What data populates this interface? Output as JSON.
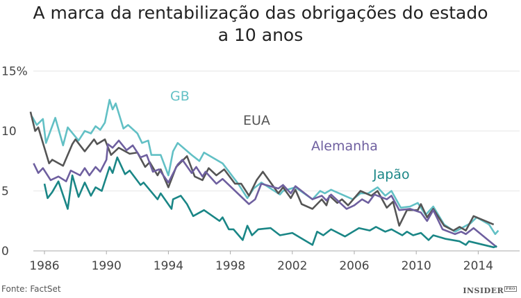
{
  "chart_data": {
    "type": "line",
    "title": "A marca da rentabilização das obrigações do estado a 10 anos",
    "title_lines": [
      "A marca da rentabilização das obrigações do estado",
      "a 10 anos"
    ],
    "xlabel": "",
    "ylabel": "",
    "x_ticks": [
      "1986",
      "1990",
      "1994",
      "1998",
      "2002",
      "2006",
      "2010",
      "2014"
    ],
    "y_ticks": [
      "0",
      "5",
      "10",
      "15%"
    ],
    "ylim": [
      0,
      15
    ],
    "xlim": [
      1985,
      2016
    ],
    "grid": true,
    "legend": "inline labels",
    "series": [
      {
        "name": "GB",
        "color": "#62c0c5",
        "points": [
          [
            1985.2,
            11.2
          ],
          [
            1985.5,
            10.5
          ],
          [
            1985.9,
            11.0
          ],
          [
            1986.1,
            9.0
          ],
          [
            1986.7,
            11.1
          ],
          [
            1987.2,
            8.8
          ],
          [
            1987.5,
            10.3
          ],
          [
            1988.2,
            9.2
          ],
          [
            1988.6,
            10.0
          ],
          [
            1989,
            9.8
          ],
          [
            1989.3,
            10.4
          ],
          [
            1989.6,
            10.1
          ],
          [
            1989.9,
            10.7
          ],
          [
            1990.2,
            12.6
          ],
          [
            1990.4,
            11.8
          ],
          [
            1990.6,
            12.3
          ],
          [
            1991.1,
            10.2
          ],
          [
            1991.4,
            10.5
          ],
          [
            1992,
            9.8
          ],
          [
            1992.3,
            9.0
          ],
          [
            1992.7,
            9.2
          ],
          [
            1992.9,
            8.0
          ],
          [
            1993.5,
            8.0
          ],
          [
            1994,
            6.3
          ],
          [
            1994.3,
            8.3
          ],
          [
            1994.6,
            9.0
          ],
          [
            1995.5,
            8.0
          ],
          [
            1996,
            7.5
          ],
          [
            1996.3,
            8.2
          ],
          [
            1997.5,
            7.3
          ],
          [
            1998.5,
            5.6
          ],
          [
            1999.1,
            4.4
          ],
          [
            1999.5,
            5.2
          ],
          [
            2000,
            5.7
          ],
          [
            2001.2,
            4.7
          ],
          [
            2001.4,
            5.0
          ],
          [
            2002.2,
            5.3
          ],
          [
            2003.3,
            4.3
          ],
          [
            2003.8,
            5.0
          ],
          [
            2004.1,
            4.8
          ],
          [
            2004.5,
            5.1
          ],
          [
            2005.9,
            4.3
          ],
          [
            2006.4,
            4.8
          ],
          [
            2006.9,
            4.8
          ],
          [
            2007.5,
            5.3
          ],
          [
            2008,
            4.6
          ],
          [
            2008.4,
            5.0
          ],
          [
            2009,
            3.6
          ],
          [
            2009.6,
            3.7
          ],
          [
            2010.1,
            4.0
          ],
          [
            2010.6,
            3.0
          ],
          [
            2011.1,
            3.7
          ],
          [
            2011.8,
            2.2
          ],
          [
            2012.5,
            1.6
          ],
          [
            2013.5,
            2.3
          ],
          [
            2013.9,
            2.8
          ],
          [
            2014.7,
            2.2
          ],
          [
            2015.1,
            1.4
          ],
          [
            2015.3,
            1.7
          ]
        ]
      },
      {
        "name": "EUA",
        "color": "#555555",
        "points": [
          [
            1985.1,
            11.6
          ],
          [
            1985.4,
            10.0
          ],
          [
            1985.6,
            10.3
          ],
          [
            1985.9,
            9.0
          ],
          [
            1986.3,
            7.3
          ],
          [
            1986.5,
            7.6
          ],
          [
            1987.2,
            7.1
          ],
          [
            1987.8,
            8.9
          ],
          [
            1988,
            9.3
          ],
          [
            1988.6,
            8.3
          ],
          [
            1989.2,
            9.3
          ],
          [
            1989.4,
            8.9
          ],
          [
            1989.9,
            9.3
          ],
          [
            1990.3,
            8.0
          ],
          [
            1990.8,
            8.6
          ],
          [
            1991.5,
            8.1
          ],
          [
            1992,
            8.2
          ],
          [
            1992.5,
            7.0
          ],
          [
            1992.8,
            7.4
          ],
          [
            1993.3,
            6.3
          ],
          [
            1993.5,
            6.8
          ],
          [
            1994,
            5.3
          ],
          [
            1994.5,
            7.0
          ],
          [
            1995.2,
            7.9
          ],
          [
            1995.7,
            6.2
          ],
          [
            1996.2,
            5.9
          ],
          [
            1996.6,
            6.9
          ],
          [
            1997.1,
            6.3
          ],
          [
            1997.6,
            6.8
          ],
          [
            1998.3,
            5.6
          ],
          [
            1998.7,
            5.6
          ],
          [
            1999.2,
            4.6
          ],
          [
            1999.7,
            5.9
          ],
          [
            2000.1,
            6.6
          ],
          [
            2001.1,
            4.8
          ],
          [
            2001.4,
            5.3
          ],
          [
            2001.9,
            4.4
          ],
          [
            2002.2,
            5.1
          ],
          [
            2002.6,
            3.9
          ],
          [
            2003.3,
            3.5
          ],
          [
            2003.9,
            4.3
          ],
          [
            2004.2,
            3.8
          ],
          [
            2004.4,
            4.6
          ],
          [
            2004.9,
            4.0
          ],
          [
            2005.2,
            4.3
          ],
          [
            2005.6,
            3.8
          ],
          [
            2006.4,
            5.0
          ],
          [
            2007.1,
            4.6
          ],
          [
            2007.5,
            5.0
          ],
          [
            2008.1,
            3.6
          ],
          [
            2008.5,
            4.1
          ],
          [
            2008.9,
            2.1
          ],
          [
            2009.4,
            3.4
          ],
          [
            2010.1,
            3.4
          ],
          [
            2010.3,
            3.9
          ],
          [
            2010.7,
            2.8
          ],
          [
            2011.1,
            3.5
          ],
          [
            2011.8,
            2.1
          ],
          [
            2012.4,
            1.7
          ],
          [
            2012.8,
            2.0
          ],
          [
            2013.2,
            1.7
          ],
          [
            2013.7,
            2.9
          ],
          [
            2015.0,
            2.2
          ]
        ]
      },
      {
        "name": "Alemanha",
        "color": "#6e5f9f",
        "points": [
          [
            1985.3,
            7.3
          ],
          [
            1985.6,
            6.5
          ],
          [
            1985.9,
            6.9
          ],
          [
            1986.4,
            5.9
          ],
          [
            1986.9,
            6.2
          ],
          [
            1987.4,
            5.8
          ],
          [
            1987.7,
            6.7
          ],
          [
            1988.3,
            6.3
          ],
          [
            1988.6,
            6.9
          ],
          [
            1988.9,
            6.3
          ],
          [
            1989.3,
            7.0
          ],
          [
            1989.6,
            6.6
          ],
          [
            1990,
            7.6
          ],
          [
            1990.1,
            8.9
          ],
          [
            1990.4,
            8.6
          ],
          [
            1990.8,
            9.2
          ],
          [
            1991.3,
            8.4
          ],
          [
            1991.7,
            8.8
          ],
          [
            1992.2,
            7.8
          ],
          [
            1992.6,
            8.0
          ],
          [
            1993,
            6.6
          ],
          [
            1993.4,
            6.8
          ],
          [
            1994,
            5.7
          ],
          [
            1994.6,
            7.2
          ],
          [
            1994.9,
            7.6
          ],
          [
            1995.5,
            6.5
          ],
          [
            1995.8,
            7.0
          ],
          [
            1996.2,
            6.2
          ],
          [
            1996.4,
            6.6
          ],
          [
            1997.1,
            5.6
          ],
          [
            1997.5,
            6.0
          ],
          [
            1999.2,
            3.9
          ],
          [
            1999.6,
            4.3
          ],
          [
            2000.0,
            5.6
          ],
          [
            2001.1,
            5.2
          ],
          [
            2001.4,
            5.5
          ],
          [
            2001.9,
            4.8
          ],
          [
            2002.2,
            5.4
          ],
          [
            2003.3,
            4.3
          ],
          [
            2003.9,
            4.6
          ],
          [
            2004.2,
            4.2
          ],
          [
            2004.5,
            4.7
          ],
          [
            2005.5,
            3.5
          ],
          [
            2006,
            3.8
          ],
          [
            2006.5,
            4.3
          ],
          [
            2006.9,
            4.0
          ],
          [
            2007.3,
            4.7
          ],
          [
            2008.1,
            4.3
          ],
          [
            2008.4,
            4.6
          ],
          [
            2008.9,
            3.4
          ],
          [
            2009.6,
            3.5
          ],
          [
            2010.3,
            3.2
          ],
          [
            2010.7,
            2.5
          ],
          [
            2011.1,
            3.4
          ],
          [
            2011.7,
            1.8
          ],
          [
            2012.5,
            1.4
          ],
          [
            2012.9,
            1.6
          ],
          [
            2013.2,
            1.4
          ],
          [
            2013.7,
            1.9
          ],
          [
            2015.2,
            0.3
          ]
        ]
      },
      {
        "name": "Japão",
        "color": "#1a8686",
        "points": [
          [
            1986.0,
            5.6
          ],
          [
            1986.2,
            4.4
          ],
          [
            1986.5,
            4.9
          ],
          [
            1986.9,
            5.8
          ],
          [
            1987.5,
            3.5
          ],
          [
            1987.8,
            6.3
          ],
          [
            1988.2,
            4.5
          ],
          [
            1988.6,
            5.7
          ],
          [
            1989.0,
            4.6
          ],
          [
            1989.3,
            5.3
          ],
          [
            1989.7,
            5.0
          ],
          [
            1990.2,
            7.0
          ],
          [
            1990.4,
            6.5
          ],
          [
            1990.7,
            7.8
          ],
          [
            1991.2,
            6.4
          ],
          [
            1991.5,
            6.7
          ],
          [
            1992.2,
            5.5
          ],
          [
            1992.4,
            5.7
          ],
          [
            1993.3,
            4.3
          ],
          [
            1993.5,
            4.8
          ],
          [
            1994.2,
            3.5
          ],
          [
            1994.3,
            4.3
          ],
          [
            1994.8,
            4.6
          ],
          [
            1995.2,
            3.9
          ],
          [
            1995.6,
            2.9
          ],
          [
            1996.3,
            3.4
          ],
          [
            1997.3,
            2.5
          ],
          [
            1997.5,
            2.8
          ],
          [
            1997.9,
            1.8
          ],
          [
            1998.2,
            1.8
          ],
          [
            1998.8,
            0.9
          ],
          [
            1999.1,
            2.1
          ],
          [
            1999.4,
            1.3
          ],
          [
            1999.8,
            1.8
          ],
          [
            2000.6,
            1.9
          ],
          [
            2001.2,
            1.3
          ],
          [
            2002,
            1.5
          ],
          [
            2003.3,
            0.5
          ],
          [
            2003.6,
            1.6
          ],
          [
            2004,
            1.3
          ],
          [
            2004.5,
            1.8
          ],
          [
            2005.4,
            1.2
          ],
          [
            2006.3,
            1.9
          ],
          [
            2007,
            1.7
          ],
          [
            2007.4,
            2.0
          ],
          [
            2008,
            1.6
          ],
          [
            2008.4,
            1.8
          ],
          [
            2009.1,
            1.3
          ],
          [
            2009.4,
            1.6
          ],
          [
            2009.8,
            1.3
          ],
          [
            2010.3,
            1.5
          ],
          [
            2010.8,
            0.9
          ],
          [
            2011.1,
            1.3
          ],
          [
            2011.9,
            1.0
          ],
          [
            2012.8,
            0.8
          ],
          [
            2013.2,
            0.5
          ],
          [
            2013.4,
            0.8
          ],
          [
            2015.0,
            0.3
          ],
          [
            2015.2,
            0.4
          ]
        ]
      }
    ]
  },
  "footer": {
    "source": "Fonte: FactSet",
    "logo": "INSIDER PRO"
  }
}
